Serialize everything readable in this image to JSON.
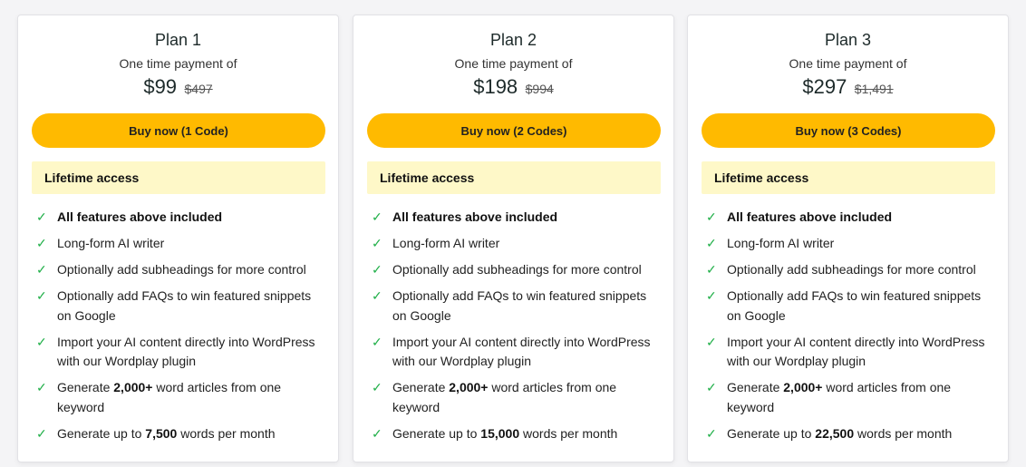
{
  "colors": {
    "button": "#ffba00",
    "access_bg": "#fef8c8",
    "check": "#22b04a"
  },
  "plans": [
    {
      "title": "Plan 1",
      "subtitle": "One time payment of",
      "price": "$99",
      "old_price": "$497",
      "button": "Buy now (1 Code)",
      "access": "Lifetime access",
      "features": [
        {
          "pre": "",
          "bold": "All features above included",
          "post": ""
        },
        {
          "pre": "Long-form AI writer",
          "bold": "",
          "post": ""
        },
        {
          "pre": "Optionally add subheadings for more control",
          "bold": "",
          "post": ""
        },
        {
          "pre": "Optionally add FAQs to win featured snippets on Google",
          "bold": "",
          "post": ""
        },
        {
          "pre": "Import your AI content directly into WordPress with our Wordplay plugin",
          "bold": "",
          "post": ""
        },
        {
          "pre": "Generate ",
          "bold": "2,000+",
          "post": " word articles from one keyword"
        },
        {
          "pre": "Generate up to ",
          "bold": "7,500",
          "post": " words per month"
        }
      ]
    },
    {
      "title": "Plan 2",
      "subtitle": "One time payment of",
      "price": "$198",
      "old_price": "$994",
      "button": "Buy now (2 Codes)",
      "access": "Lifetime access",
      "features": [
        {
          "pre": "",
          "bold": "All features above included",
          "post": ""
        },
        {
          "pre": "Long-form AI writer",
          "bold": "",
          "post": ""
        },
        {
          "pre": "Optionally add subheadings for more control",
          "bold": "",
          "post": ""
        },
        {
          "pre": "Optionally add FAQs to win featured snippets on Google",
          "bold": "",
          "post": ""
        },
        {
          "pre": "Import your AI content directly into WordPress with our Wordplay plugin",
          "bold": "",
          "post": ""
        },
        {
          "pre": "Generate ",
          "bold": "2,000+",
          "post": " word articles from one keyword"
        },
        {
          "pre": "Generate up to ",
          "bold": "15,000",
          "post": " words per month"
        }
      ]
    },
    {
      "title": "Plan 3",
      "subtitle": "One time payment of",
      "price": "$297",
      "old_price": "$1,491",
      "button": "Buy now (3 Codes)",
      "access": "Lifetime access",
      "features": [
        {
          "pre": "",
          "bold": "All features above included",
          "post": ""
        },
        {
          "pre": "Long-form AI writer",
          "bold": "",
          "post": ""
        },
        {
          "pre": "Optionally add subheadings for more control",
          "bold": "",
          "post": ""
        },
        {
          "pre": "Optionally add FAQs to win featured snippets on Google",
          "bold": "",
          "post": ""
        },
        {
          "pre": "Import your AI content directly into WordPress with our Wordplay plugin",
          "bold": "",
          "post": ""
        },
        {
          "pre": "Generate ",
          "bold": "2,000+",
          "post": " word articles from one keyword"
        },
        {
          "pre": "Generate up to ",
          "bold": "22,500",
          "post": " words per month"
        }
      ]
    }
  ]
}
